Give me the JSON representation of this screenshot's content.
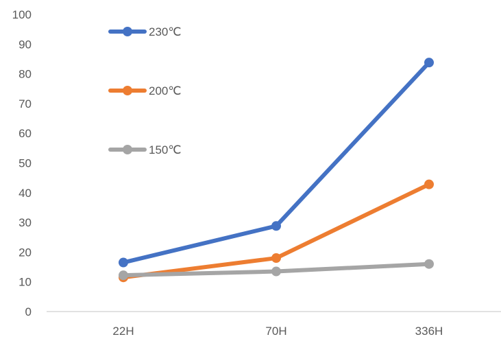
{
  "chart_data": {
    "type": "line",
    "categories": [
      "22H",
      "70H",
      "336H"
    ],
    "ylim": [
      0,
      100
    ],
    "yticks": [
      0,
      10,
      20,
      30,
      40,
      50,
      60,
      70,
      80,
      90,
      100
    ],
    "grid": false,
    "legend_position": "top-left",
    "series": [
      {
        "name": "230℃",
        "color": "#4472C4",
        "values": [
          16.5,
          28.8,
          83.8
        ]
      },
      {
        "name": "200℃",
        "color": "#ED7D31",
        "values": [
          11.5,
          18.0,
          42.8
        ]
      },
      {
        "name": "150℃",
        "color": "#A5A5A5",
        "values": [
          12.2,
          13.5,
          16.0
        ]
      }
    ]
  }
}
